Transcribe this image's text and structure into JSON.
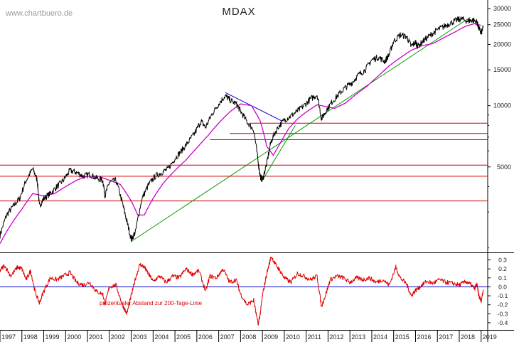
{
  "watermark": "www.chartbuero.de",
  "title": "MDAX",
  "colors": {
    "price": "#000000",
    "ma200": "#cc00cc",
    "support": "#cc0000",
    "trend_up": "#009900",
    "trend_down": "#0000cc",
    "oscillator": "#dd0000",
    "zero_line": "#0000cc",
    "axis_text": "#222222"
  },
  "chart_data": [
    {
      "type": "line",
      "title": "MDAX",
      "y_scale": "log",
      "ylim": [
        1900,
        31000
      ],
      "xlim": [
        1997.0,
        2019.3
      ],
      "y_ticks": [
        {
          "value": 30000,
          "label": "30000"
        },
        {
          "value": 25000,
          "label": "25000"
        },
        {
          "value": 20000,
          "label": "20000"
        },
        {
          "value": 15000,
          "label": "15000"
        },
        {
          "value": 10000,
          "label": "10000"
        },
        {
          "value": 5000,
          "label": "5000"
        }
      ],
      "x_ticks": [
        "1997",
        "1998",
        "1999",
        "2000",
        "2001",
        "2002",
        "2003",
        "2004",
        "2005",
        "2006",
        "2007",
        "2008",
        "2009",
        "2010",
        "2011",
        "2012",
        "2013",
        "2014",
        "2015",
        "2016",
        "2017",
        "2018",
        "2019"
      ],
      "series": [
        {
          "name": "",
          "kind": "price",
          "x": [
            1997.0,
            1997.3,
            1997.6,
            1997.9,
            1998.2,
            1998.5,
            1998.7,
            1998.8,
            1999.0,
            1999.3,
            1999.6,
            1999.9,
            2000.2,
            2000.5,
            2000.8,
            2001.1,
            2001.4,
            2001.7,
            2001.8,
            2002.0,
            2002.3,
            2002.6,
            2002.8,
            2003.0,
            2003.2,
            2003.5,
            2003.8,
            2004.1,
            2004.4,
            2004.7,
            2005.0,
            2005.3,
            2005.6,
            2005.9,
            2006.2,
            2006.4,
            2006.7,
            2007.0,
            2007.3,
            2007.5,
            2007.8,
            2008.0,
            2008.3,
            2008.6,
            2008.8,
            2008.9,
            2009.0,
            2009.2,
            2009.4,
            2009.7,
            2010.0,
            2010.3,
            2010.6,
            2010.9,
            2011.2,
            2011.5,
            2011.7,
            2011.9,
            2012.2,
            2012.5,
            2012.8,
            2013.1,
            2013.4,
            2013.7,
            2014.0,
            2014.3,
            2014.6,
            2014.8,
            2015.0,
            2015.3,
            2015.6,
            2015.8,
            2016.0,
            2016.1,
            2016.4,
            2016.7,
            2017.0,
            2017.3,
            2017.6,
            2017.9,
            2018.1,
            2018.4,
            2018.6,
            2018.8,
            2018.9,
            2019.0,
            2019.1
          ],
          "y": [
            2300,
            2900,
            3200,
            3500,
            4300,
            4900,
            4300,
            3200,
            3500,
            3700,
            4000,
            4300,
            4800,
            4700,
            4500,
            4600,
            4400,
            4300,
            3600,
            4200,
            4300,
            3300,
            2700,
            2200,
            2400,
            3500,
            4100,
            4500,
            4700,
            4900,
            5500,
            6000,
            6600,
            7300,
            8400,
            7800,
            9100,
            10200,
            11200,
            10700,
            10200,
            9400,
            8300,
            7600,
            5300,
            4500,
            4300,
            5200,
            6700,
            7800,
            8500,
            8900,
            9400,
            10000,
            10800,
            11300,
            8600,
            9400,
            10500,
            11400,
            12300,
            13000,
            14200,
            15000,
            16800,
            17300,
            16500,
            17900,
            20700,
            22300,
            21800,
            19600,
            20500,
            19600,
            21000,
            22300,
            23600,
            24500,
            25500,
            26400,
            26700,
            26000,
            26400,
            25800,
            24000,
            22700,
            24300
          ]
        },
        {
          "name": "",
          "kind": "moving_average",
          "x": [
            1997.0,
            1997.5,
            1998.0,
            1998.5,
            1999.0,
            1999.5,
            2000.0,
            2000.5,
            2001.0,
            2001.5,
            2002.0,
            2002.5,
            2003.0,
            2003.3,
            2003.6,
            2004.0,
            2004.5,
            2005.0,
            2005.5,
            2006.0,
            2006.5,
            2007.0,
            2007.5,
            2008.0,
            2008.5,
            2008.9,
            2009.2,
            2009.5,
            2009.8,
            2010.2,
            2010.6,
            2011.0,
            2011.5,
            2011.9,
            2012.3,
            2012.8,
            2013.3,
            2013.8,
            2014.3,
            2014.8,
            2015.3,
            2015.8,
            2016.3,
            2016.8,
            2017.3,
            2017.8,
            2018.3,
            2018.7,
            2019.0
          ],
          "y": [
            2100,
            2600,
            3100,
            3700,
            3600,
            3700,
            4000,
            4300,
            4500,
            4500,
            4300,
            4100,
            3400,
            2900,
            2900,
            3500,
            4200,
            4800,
            5400,
            6200,
            7100,
            8200,
            9300,
            10200,
            10000,
            8400,
            6300,
            5700,
            6500,
            7700,
            8600,
            9300,
            10100,
            9900,
            9700,
            10300,
            11400,
            12500,
            14000,
            15700,
            17200,
            18700,
            19700,
            20200,
            21600,
            23000,
            24600,
            25300,
            24800
          ]
        }
      ],
      "annotations": {
        "horizontal_lines": [
          8200,
          7300,
          6800,
          5100,
          4500,
          3400
        ],
        "trendlines": [
          {
            "kind": "uptrend",
            "from": [
              2003.0,
              2150
            ],
            "to": [
              2018.5,
              27200
            ]
          },
          {
            "kind": "uptrend",
            "from": [
              2009.0,
              4300
            ],
            "to": [
              2010.5,
              8000
            ]
          },
          {
            "kind": "downtrend",
            "from": [
              2007.3,
              11600
            ],
            "to": [
              2009.9,
              8400
            ]
          }
        ]
      }
    },
    {
      "type": "line",
      "series_label": "prozentualer Abstand zur 200-Tage-Linie",
      "ylim": [
        -0.48,
        0.36
      ],
      "y_ticks": [
        "0.3",
        "0.2",
        "0.1",
        "0.0",
        "-0.1",
        "-0.2",
        "-0.3",
        "-0.4"
      ],
      "zero_line": 0.0,
      "series": [
        {
          "name": "prozentualer Abstand zur 200-Tage-Linie",
          "x": [
            1997.0,
            1997.2,
            1997.5,
            1997.8,
            1998.0,
            1998.2,
            1998.4,
            1998.6,
            1998.8,
            1999.0,
            1999.3,
            1999.6,
            1999.9,
            2000.2,
            2000.5,
            2000.8,
            2001.1,
            2001.4,
            2001.7,
            2001.8,
            2002.0,
            2002.3,
            2002.6,
            2002.8,
            2003.0,
            2003.2,
            2003.4,
            2003.6,
            2003.8,
            2004.0,
            2004.3,
            2004.6,
            2004.9,
            2005.2,
            2005.5,
            2005.8,
            2006.1,
            2006.4,
            2006.6,
            2006.9,
            2007.2,
            2007.5,
            2007.8,
            2008.0,
            2008.3,
            2008.6,
            2008.8,
            2008.9,
            2009.0,
            2009.2,
            2009.4,
            2009.6,
            2009.8,
            2010.0,
            2010.3,
            2010.6,
            2010.9,
            2011.2,
            2011.5,
            2011.7,
            2011.9,
            2012.1,
            2012.4,
            2012.7,
            2013.0,
            2013.3,
            2013.6,
            2013.9,
            2014.2,
            2014.5,
            2014.8,
            2015.1,
            2015.3,
            2015.6,
            2015.8,
            2016.0,
            2016.2,
            2016.5,
            2016.8,
            2017.1,
            2017.4,
            2017.7,
            2018.0,
            2018.3,
            2018.5,
            2018.7,
            2018.8,
            2018.9,
            2019.0,
            2019.1
          ],
          "y": [
            0.18,
            0.24,
            0.12,
            0.22,
            0.2,
            0.08,
            0.18,
            -0.05,
            -0.18,
            -0.05,
            0.1,
            0.08,
            0.12,
            0.16,
            0.05,
            0.02,
            0.05,
            -0.05,
            -0.08,
            -0.2,
            0.0,
            0.02,
            -0.2,
            -0.3,
            -0.1,
            0.1,
            0.25,
            0.22,
            0.14,
            0.06,
            0.12,
            0.05,
            0.12,
            0.1,
            0.2,
            0.14,
            0.18,
            -0.05,
            0.12,
            0.1,
            0.2,
            0.05,
            0.08,
            -0.08,
            -0.2,
            -0.15,
            -0.42,
            -0.3,
            -0.1,
            0.15,
            0.34,
            0.25,
            0.18,
            0.1,
            0.05,
            0.15,
            0.12,
            0.08,
            0.12,
            -0.22,
            -0.08,
            0.08,
            0.12,
            0.1,
            0.05,
            0.1,
            0.08,
            0.1,
            0.05,
            0.08,
            0.02,
            0.22,
            0.1,
            0.03,
            -0.1,
            -0.04,
            0.0,
            0.06,
            0.04,
            0.08,
            0.05,
            0.04,
            0.02,
            0.06,
            0.03,
            -0.02,
            0.03,
            -0.1,
            -0.16,
            -0.03
          ]
        }
      ]
    }
  ]
}
